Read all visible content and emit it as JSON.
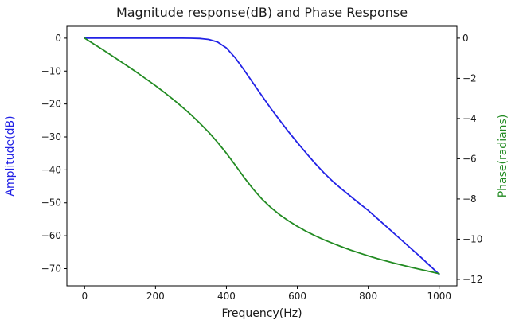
{
  "chart_data": {
    "type": "line",
    "title": "Magnitude response(dB) and Phase Response",
    "xlabel": "Frequency(Hz)",
    "ylabel_left": "Amplitude(dB)",
    "ylabel_right": "Phase(radians)",
    "xlim": [
      -50,
      1050
    ],
    "ylim_left": [
      -75.2,
      3.6
    ],
    "ylim_right": [
      -12.32,
      0.59
    ],
    "xticks": [
      0,
      200,
      400,
      600,
      800,
      1000
    ],
    "yticks_left": [
      0,
      -10,
      -20,
      -30,
      -40,
      -50,
      -60,
      -70
    ],
    "yticks_right": [
      0,
      -2,
      -4,
      -6,
      -8,
      -10,
      -12
    ],
    "grid": false,
    "legend": "none",
    "x": [
      0,
      25,
      50,
      75,
      100,
      125,
      150,
      175,
      200,
      225,
      250,
      275,
      300,
      325,
      350,
      375,
      400,
      425,
      450,
      475,
      500,
      525,
      550,
      575,
      600,
      625,
      650,
      675,
      700,
      725,
      750,
      775,
      800,
      825,
      850,
      875,
      900,
      925,
      950,
      975,
      1000
    ],
    "series": [
      {
        "name": "magnitude-response",
        "axis": "left",
        "color": "#2222e6",
        "values": [
          0,
          0,
          0,
          0,
          0,
          0,
          0,
          0,
          0,
          0,
          0,
          -0.01,
          -0.03,
          -0.1,
          -0.38,
          -1.18,
          -3.01,
          -6.0,
          -9.7,
          -13.6,
          -17.5,
          -21.3,
          -24.9,
          -28.4,
          -31.7,
          -34.9,
          -38.0,
          -40.9,
          -43.5,
          -45.8,
          -48.0,
          -50.2,
          -52.3,
          -54.7,
          -57.1,
          -59.5,
          -61.9,
          -64.3,
          -66.7,
          -69.2,
          -71.7
        ]
      },
      {
        "name": "phase-response",
        "axis": "right",
        "color": "#228b22",
        "values": [
          0,
          -0.28,
          -0.56,
          -0.85,
          -1.14,
          -1.44,
          -1.74,
          -2.05,
          -2.37,
          -2.7,
          -3.05,
          -3.42,
          -3.81,
          -4.23,
          -4.68,
          -5.18,
          -5.73,
          -6.32,
          -6.93,
          -7.5,
          -8.0,
          -8.42,
          -8.78,
          -9.09,
          -9.36,
          -9.61,
          -9.83,
          -10.03,
          -10.21,
          -10.38,
          -10.54,
          -10.69,
          -10.83,
          -10.96,
          -11.08,
          -11.2,
          -11.31,
          -11.42,
          -11.52,
          -11.62,
          -11.72
        ]
      }
    ]
  }
}
